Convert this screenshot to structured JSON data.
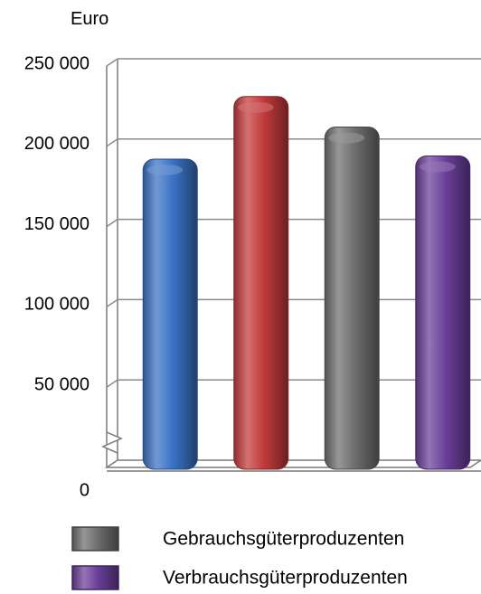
{
  "chart_data": {
    "type": "bar",
    "title": "",
    "ylabel": "Euro",
    "xlabel": "",
    "ylim": [
      0,
      250000
    ],
    "y_ticks": [
      {
        "value": 0,
        "label": "0"
      },
      {
        "value": 50000,
        "label": "50 000"
      },
      {
        "value": 100000,
        "label": "100 000"
      },
      {
        "value": 150000,
        "label": "150 000"
      },
      {
        "value": 200000,
        "label": "200 000"
      },
      {
        "value": 250000,
        "label": "250 000"
      }
    ],
    "grid": true,
    "axis_break": true,
    "categories": [
      "",
      "",
      "",
      ""
    ],
    "values": [
      192000,
      231000,
      212000,
      194000
    ],
    "colors": [
      "#3A72C4",
      "#C23A3A",
      "#6E6E6E",
      "#6A3F9A"
    ],
    "legend_position": "bottom-left",
    "legend": [
      {
        "label": "Gebrauchsgüterproduzenten",
        "color": "#6E6E6E"
      },
      {
        "label": "Verbrauchsgüterproduzenten",
        "color": "#6A3F9A"
      }
    ]
  }
}
